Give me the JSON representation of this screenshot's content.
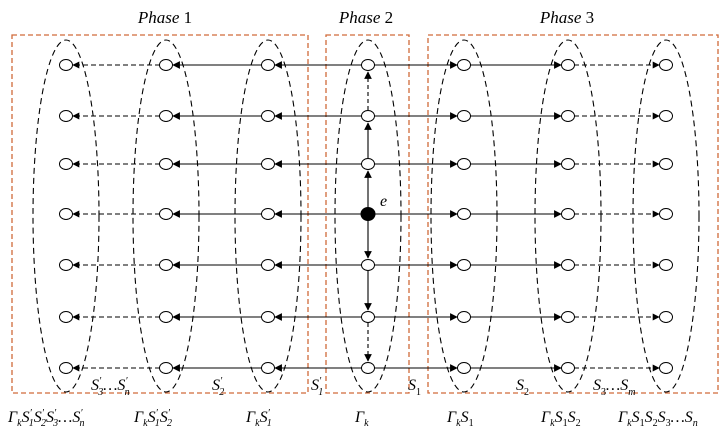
{
  "phases": [
    {
      "label": "Phase",
      "num": "1"
    },
    {
      "label": "Phase",
      "num": "2"
    },
    {
      "label": "Phase",
      "num": "3"
    }
  ],
  "center_node_label": "e",
  "edge_labels": {
    "s3_sn_prime": "S′3…S′n",
    "s2_prime": "S′2",
    "s1_prime": "S′1",
    "s1": "S1",
    "s2": "S2",
    "s3_sm": "S3…Sm"
  },
  "column_labels": [
    "ΓkS1′S2′S3′…Sn′",
    "ΓkS1′S2′",
    "ΓkS1′",
    "Γk",
    "ΓkS1",
    "ΓkS1S2",
    "ΓkS1S2S3…Sn"
  ],
  "colors": {
    "phase_box": "#d06a3a",
    "lines": "#000000",
    "node_fill": "#ffffff",
    "center_node_fill": "#000000"
  }
}
